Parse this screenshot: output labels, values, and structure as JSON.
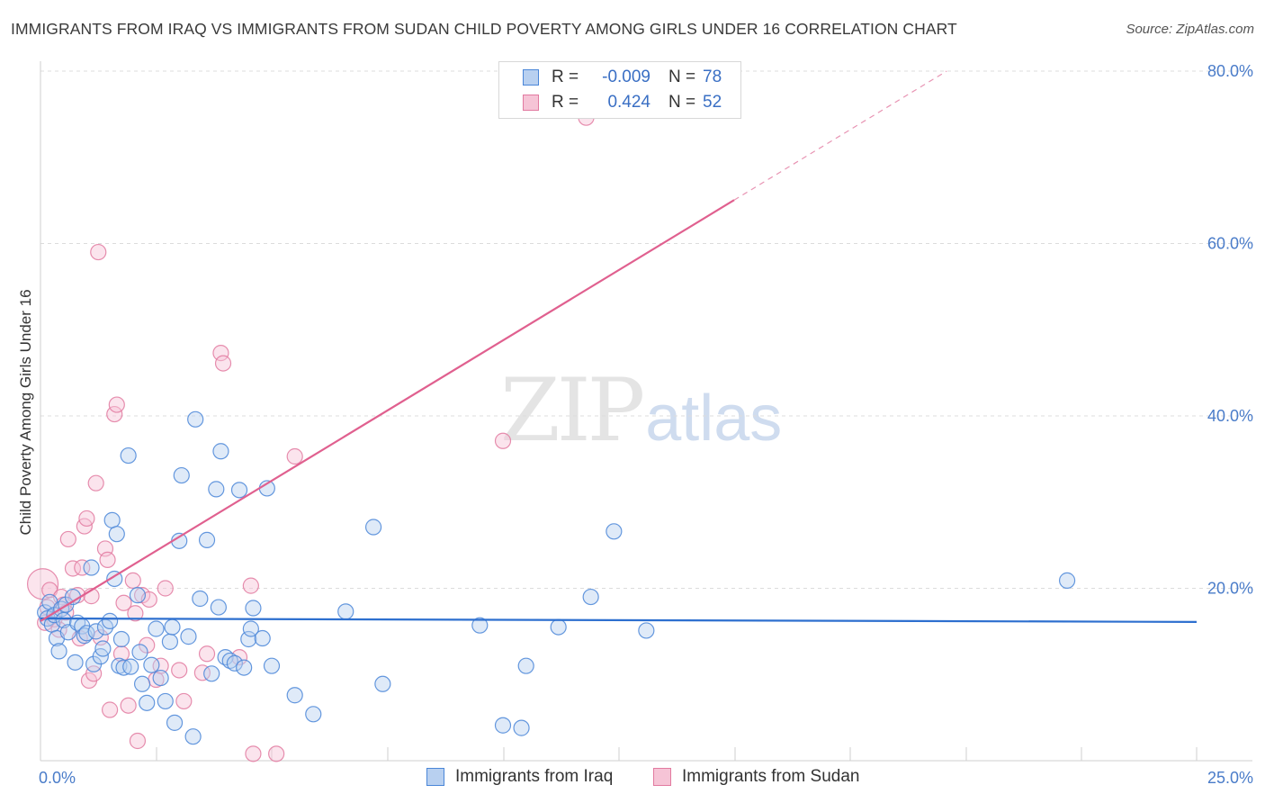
{
  "title": "IMMIGRANTS FROM IRAQ VS IMMIGRANTS FROM SUDAN CHILD POVERTY AMONG GIRLS UNDER 16 CORRELATION CHART",
  "source": "Source: ZipAtlas.com",
  "watermark": {
    "zip": "ZIP",
    "atlas": "atlas"
  },
  "legend": {
    "rows": [
      {
        "r_label": "R =",
        "r_value": "-0.009",
        "n_label": "N =",
        "n_value": "78",
        "color": "#4a86d8",
        "fill": "#b8d0f0"
      },
      {
        "r_label": "R =",
        "r_value": "0.424",
        "n_label": "N =",
        "n_value": "52",
        "color": "#e27aa0",
        "fill": "#f6c4d6"
      }
    ]
  },
  "bottom_legend": [
    "Immigrants from Iraq",
    "Immigrants from Sudan"
  ],
  "chart_data": {
    "type": "scatter",
    "title": "IMMIGRANTS FROM IRAQ VS IMMIGRANTS FROM SUDAN CHILD POVERTY AMONG GIRLS UNDER 16 CORRELATION CHART",
    "xlabel": "",
    "ylabel": "Child Poverty Among Girls Under 16",
    "xlim": [
      0,
      25
    ],
    "ylim": [
      0,
      80
    ],
    "x_tick_labels": [
      "0.0%",
      "25.0%"
    ],
    "y_ticks": [
      20,
      40,
      60,
      80
    ],
    "y_tick_labels": [
      "20.0%",
      "40.0%",
      "60.0%",
      "80.0%"
    ],
    "grid": true,
    "series": [
      {
        "name": "Immigrants from Iraq",
        "color": "#4a86d8",
        "fill": "#b8d0f0",
        "points": [
          [
            0.1,
            17.2
          ],
          [
            0.15,
            16.5
          ],
          [
            0.2,
            18.4
          ],
          [
            0.25,
            15.8
          ],
          [
            0.3,
            16.9
          ],
          [
            0.35,
            14.2
          ],
          [
            0.4,
            12.7
          ],
          [
            0.45,
            17.6
          ],
          [
            0.5,
            16.3
          ],
          [
            0.55,
            18.1
          ],
          [
            0.6,
            14.9
          ],
          [
            0.7,
            19.0
          ],
          [
            0.75,
            11.4
          ],
          [
            0.8,
            16.0
          ],
          [
            0.9,
            15.6
          ],
          [
            0.95,
            14.5
          ],
          [
            1.0,
            14.8
          ],
          [
            1.1,
            22.4
          ],
          [
            1.15,
            11.2
          ],
          [
            1.2,
            15.0
          ],
          [
            1.3,
            12.1
          ],
          [
            1.35,
            13.0
          ],
          [
            1.4,
            15.5
          ],
          [
            1.5,
            16.2
          ],
          [
            1.55,
            27.9
          ],
          [
            1.6,
            21.1
          ],
          [
            1.65,
            26.3
          ],
          [
            1.7,
            11.0
          ],
          [
            1.75,
            14.1
          ],
          [
            1.8,
            10.8
          ],
          [
            1.9,
            35.4
          ],
          [
            1.95,
            10.9
          ],
          [
            2.1,
            19.2
          ],
          [
            2.15,
            12.6
          ],
          [
            2.2,
            8.9
          ],
          [
            2.3,
            6.7
          ],
          [
            2.4,
            11.1
          ],
          [
            2.5,
            15.3
          ],
          [
            2.6,
            9.6
          ],
          [
            2.7,
            6.9
          ],
          [
            2.8,
            13.8
          ],
          [
            2.85,
            15.5
          ],
          [
            2.9,
            4.4
          ],
          [
            3.0,
            25.5
          ],
          [
            3.05,
            33.1
          ],
          [
            3.2,
            14.4
          ],
          [
            3.3,
            2.8
          ],
          [
            3.35,
            39.6
          ],
          [
            3.45,
            18.8
          ],
          [
            3.6,
            25.6
          ],
          [
            3.7,
            10.1
          ],
          [
            3.8,
            31.5
          ],
          [
            3.85,
            17.8
          ],
          [
            3.9,
            35.9
          ],
          [
            4.0,
            12.0
          ],
          [
            4.1,
            11.6
          ],
          [
            4.2,
            11.3
          ],
          [
            4.3,
            31.4
          ],
          [
            4.4,
            10.8
          ],
          [
            4.5,
            14.1
          ],
          [
            4.55,
            15.3
          ],
          [
            4.6,
            17.7
          ],
          [
            4.8,
            14.2
          ],
          [
            4.9,
            31.6
          ],
          [
            5.0,
            11.0
          ],
          [
            5.5,
            7.6
          ],
          [
            5.9,
            5.4
          ],
          [
            6.6,
            17.3
          ],
          [
            7.2,
            27.1
          ],
          [
            7.4,
            8.9
          ],
          [
            9.5,
            15.7
          ],
          [
            10.0,
            4.1
          ],
          [
            10.4,
            3.8
          ],
          [
            10.5,
            11.0
          ],
          [
            11.2,
            15.5
          ],
          [
            11.9,
            19.0
          ],
          [
            12.4,
            26.6
          ],
          [
            13.1,
            15.1
          ],
          [
            22.2,
            20.9
          ]
        ],
        "trend": {
          "x": [
            0,
            25
          ],
          "y": [
            16.5,
            16.1
          ],
          "dashed_from": null
        }
      },
      {
        "name": "Immigrants from Sudan",
        "color": "#e27aa0",
        "fill": "#f6c4d6",
        "points": [
          [
            0.05,
            20.5
          ],
          [
            0.1,
            16.0
          ],
          [
            0.15,
            17.8
          ],
          [
            0.2,
            19.8
          ],
          [
            0.3,
            16.4
          ],
          [
            0.4,
            15.2
          ],
          [
            0.45,
            19.0
          ],
          [
            0.5,
            18.1
          ],
          [
            0.55,
            17.2
          ],
          [
            0.6,
            25.7
          ],
          [
            0.7,
            22.3
          ],
          [
            0.8,
            19.2
          ],
          [
            0.85,
            14.2
          ],
          [
            0.9,
            22.4
          ],
          [
            0.95,
            27.2
          ],
          [
            1.0,
            28.1
          ],
          [
            1.05,
            9.3
          ],
          [
            1.1,
            19.1
          ],
          [
            1.15,
            10.1
          ],
          [
            1.2,
            32.2
          ],
          [
            1.25,
            59.0
          ],
          [
            1.3,
            14.3
          ],
          [
            1.4,
            24.6
          ],
          [
            1.45,
            23.3
          ],
          [
            1.5,
            5.9
          ],
          [
            1.6,
            40.2
          ],
          [
            1.65,
            41.3
          ],
          [
            1.75,
            12.4
          ],
          [
            1.8,
            18.3
          ],
          [
            1.9,
            6.4
          ],
          [
            2.0,
            20.9
          ],
          [
            2.05,
            17.1
          ],
          [
            2.1,
            2.3
          ],
          [
            2.2,
            19.2
          ],
          [
            2.3,
            13.4
          ],
          [
            2.35,
            18.7
          ],
          [
            2.5,
            9.4
          ],
          [
            2.6,
            11.0
          ],
          [
            2.7,
            20.0
          ],
          [
            3.0,
            10.5
          ],
          [
            3.1,
            6.9
          ],
          [
            3.5,
            10.2
          ],
          [
            3.6,
            12.4
          ],
          [
            3.9,
            47.3
          ],
          [
            3.95,
            46.1
          ],
          [
            4.3,
            12.0
          ],
          [
            4.55,
            20.3
          ],
          [
            4.6,
            0.8
          ],
          [
            5.1,
            0.8
          ],
          [
            5.5,
            35.3
          ],
          [
            10.0,
            37.1
          ],
          [
            11.8,
            74.6
          ]
        ],
        "trend": {
          "x": [
            0,
            25
          ],
          "y": [
            16.2,
            97.6
          ],
          "dashed_from": 15.0
        }
      }
    ]
  }
}
